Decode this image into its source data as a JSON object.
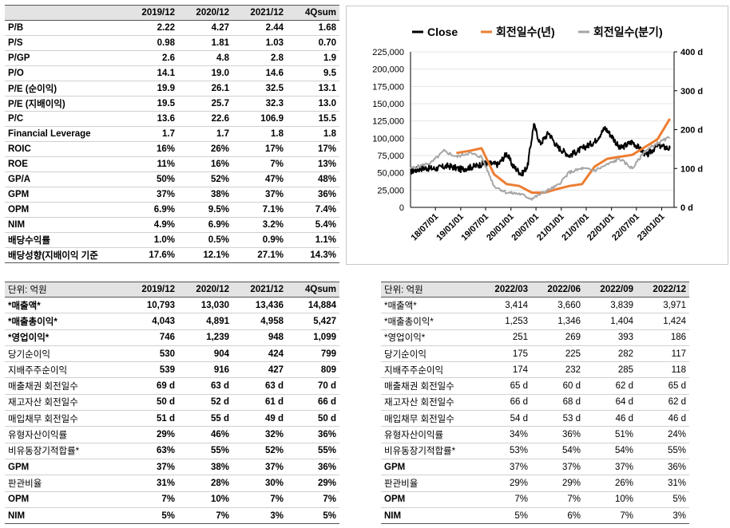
{
  "valuation": {
    "headers": [
      "",
      "2019/12",
      "2020/12",
      "2021/12",
      "4Qsum"
    ],
    "rows": [
      {
        "label": "P/B",
        "values": [
          "2.22",
          "4.27",
          "2.44",
          "1.68"
        ]
      },
      {
        "label": "P/S",
        "values": [
          "0.98",
          "1.81",
          "1.03",
          "0.70"
        ]
      },
      {
        "label": "P/GP",
        "values": [
          "2.6",
          "4.8",
          "2.8",
          "1.9"
        ]
      },
      {
        "label": "P/O",
        "values": [
          "14.1",
          "19.0",
          "14.6",
          "9.5"
        ]
      },
      {
        "label": "P/E (순이익)",
        "values": [
          "19.9",
          "26.1",
          "32.5",
          "13.1"
        ]
      },
      {
        "label": "P/E (지배이익)",
        "values": [
          "19.5",
          "25.7",
          "32.3",
          "13.0"
        ]
      },
      {
        "label": "P/C",
        "values": [
          "13.6",
          "22.6",
          "106.9",
          "15.5"
        ]
      },
      {
        "label": "Financial Leverage",
        "values": [
          "1.7",
          "1.7",
          "1.8",
          "1.8"
        ]
      },
      {
        "label": "ROIC",
        "values": [
          "16%",
          "26%",
          "17%",
          "17%"
        ]
      },
      {
        "label": "ROE",
        "values": [
          "11%",
          "16%",
          "7%",
          "13%"
        ]
      },
      {
        "label": "GP/A",
        "values": [
          "50%",
          "52%",
          "47%",
          "48%"
        ]
      },
      {
        "label": "GPM",
        "values": [
          "37%",
          "38%",
          "37%",
          "36%"
        ]
      },
      {
        "label": "OPM",
        "values": [
          "6.9%",
          "9.5%",
          "7.1%",
          "7.4%"
        ]
      },
      {
        "label": "NIM",
        "values": [
          "4.9%",
          "6.9%",
          "3.2%",
          "5.4%"
        ]
      },
      {
        "label": "배당수익률",
        "values": [
          "1.0%",
          "0.5%",
          "0.9%",
          "1.1%"
        ]
      },
      {
        "label": "배당성향(지배이익 기준",
        "values": [
          "17.6%",
          "12.1%",
          "27.1%",
          "14.3%"
        ]
      }
    ]
  },
  "annual": {
    "headers": [
      "단위: 억원",
      "2019/12",
      "2020/12",
      "2021/12",
      "4Qsum"
    ],
    "rows": [
      {
        "label": "*매출액*",
        "values": [
          "10,793",
          "13,030",
          "13,436",
          "14,884"
        ]
      },
      {
        "label": "*매출총이익*",
        "values": [
          "4,043",
          "4,891",
          "4,958",
          "5,427"
        ]
      },
      {
        "label": "*영업이익*",
        "values": [
          "746",
          "1,239",
          "948",
          "1,099"
        ]
      },
      {
        "label": "당기순이익",
        "values": [
          "530",
          "904",
          "424",
          "799"
        ]
      },
      {
        "label": "지배주주순이익",
        "values": [
          "539",
          "916",
          "427",
          "809"
        ]
      },
      {
        "label": "매출채권 회전일수",
        "values": [
          "69 d",
          "63 d",
          "63 d",
          "70 d"
        ]
      },
      {
        "label": "재고자산 회전일수",
        "values": [
          "50 d",
          "52 d",
          "61 d",
          "66 d"
        ]
      },
      {
        "label": "매입채무 회전일수",
        "values": [
          "51 d",
          "55 d",
          "49 d",
          "50 d"
        ]
      },
      {
        "label": "유형자산이익률",
        "values": [
          "29%",
          "46%",
          "32%",
          "36%"
        ]
      },
      {
        "label": "비유동장기적합률*",
        "values": [
          "63%",
          "55%",
          "52%",
          "55%"
        ]
      },
      {
        "label": "GPM",
        "values": [
          "37%",
          "38%",
          "37%",
          "36%"
        ]
      },
      {
        "label": "판관비율",
        "values": [
          "31%",
          "28%",
          "30%",
          "29%"
        ]
      },
      {
        "label": "OPM",
        "values": [
          "7%",
          "10%",
          "7%",
          "7%"
        ]
      },
      {
        "label": "NIM",
        "values": [
          "5%",
          "7%",
          "3%",
          "5%"
        ]
      }
    ]
  },
  "quarterly": {
    "headers": [
      "단위: 억원",
      "2022/03",
      "2022/06",
      "2022/09",
      "2022/12"
    ],
    "rows": [
      {
        "label": "*매출액*",
        "values": [
          "3,414",
          "3,660",
          "3,839",
          "3,971"
        ]
      },
      {
        "label": "*매출총이익*",
        "values": [
          "1,253",
          "1,346",
          "1,404",
          "1,424"
        ]
      },
      {
        "label": "*영업이익*",
        "values": [
          "251",
          "269",
          "393",
          "186"
        ]
      },
      {
        "label": "당기순이익",
        "values": [
          "175",
          "225",
          "282",
          "117"
        ]
      },
      {
        "label": "지배주주순이익",
        "values": [
          "174",
          "232",
          "285",
          "118"
        ]
      },
      {
        "label": "매출채권 회전일수",
        "values": [
          "65 d",
          "60 d",
          "62 d",
          "65 d"
        ]
      },
      {
        "label": "재고자산 회전일수",
        "values": [
          "66 d",
          "68 d",
          "64 d",
          "62 d"
        ]
      },
      {
        "label": "매입채무 회전일수",
        "values": [
          "54 d",
          "53 d",
          "46 d",
          "46 d"
        ]
      },
      {
        "label": "유형자산이익률",
        "values": [
          "34%",
          "36%",
          "51%",
          "24%"
        ]
      },
      {
        "label": "비유동장기적합률*",
        "values": [
          "53%",
          "54%",
          "54%",
          "55%"
        ]
      },
      {
        "label": "GPM",
        "values": [
          "37%",
          "37%",
          "37%",
          "36%"
        ]
      },
      {
        "label": "판관비율",
        "values": [
          "29%",
          "29%",
          "26%",
          "31%"
        ]
      },
      {
        "label": "OPM",
        "values": [
          "7%",
          "7%",
          "10%",
          "5%"
        ]
      },
      {
        "label": "NIM",
        "values": [
          "5%",
          "6%",
          "7%",
          "3%"
        ]
      }
    ]
  },
  "chart_data": {
    "type": "line",
    "legend_position": "top",
    "grid": true,
    "x_tick_labels": [
      "18/07/01",
      "19/01/01",
      "19/07/01",
      "20/01/01",
      "20/07/01",
      "21/01/01",
      "21/07/01",
      "22/01/01",
      "22/07/01",
      "23/01/01"
    ],
    "y_left": {
      "ticks": [
        "0",
        "25,000",
        "50,000",
        "75,000",
        "100,000",
        "125,000",
        "150,000",
        "175,000",
        "200,000",
        "225,000"
      ],
      "ylim": [
        0,
        225000
      ]
    },
    "y_right": {
      "ticks": [
        "0 d",
        "100 d",
        "200 d",
        "300 d",
        "400 d"
      ],
      "ylim": [
        0,
        400
      ]
    },
    "x_range": [
      "2018-01-01",
      "2023-04-01"
    ],
    "series": [
      {
        "name": "Close",
        "axis": "left",
        "color": "#000000",
        "points": [
          [
            "2018-01-01",
            52000
          ],
          [
            "2018-04-01",
            57000
          ],
          [
            "2018-07-01",
            56000
          ],
          [
            "2018-10-01",
            60000
          ],
          [
            "2019-01-01",
            55000
          ],
          [
            "2019-04-01",
            59000
          ],
          [
            "2019-07-01",
            64000
          ],
          [
            "2019-10-01",
            62000
          ],
          [
            "2019-12-01",
            78000
          ],
          [
            "2020-01-15",
            60000
          ],
          [
            "2020-03-20",
            48000
          ],
          [
            "2020-05-01",
            60000
          ],
          [
            "2020-06-15",
            120000
          ],
          [
            "2020-08-01",
            92000
          ],
          [
            "2020-10-01",
            108000
          ],
          [
            "2020-12-01",
            88000
          ],
          [
            "2021-03-01",
            75000
          ],
          [
            "2021-06-01",
            85000
          ],
          [
            "2021-09-01",
            95000
          ],
          [
            "2021-11-15",
            115000
          ],
          [
            "2022-01-15",
            100000
          ],
          [
            "2022-03-01",
            85000
          ],
          [
            "2022-06-01",
            95000
          ],
          [
            "2022-09-15",
            75000
          ],
          [
            "2022-12-01",
            90000
          ],
          [
            "2023-03-01",
            85000
          ]
        ]
      },
      {
        "name": "회전일수(년)",
        "axis": "right",
        "color": "#ed7d31",
        "points": [
          [
            "2018-12-01",
            140
          ],
          [
            "2019-03-01",
            145
          ],
          [
            "2019-06-01",
            152
          ],
          [
            "2019-09-01",
            85
          ],
          [
            "2019-12-01",
            60
          ],
          [
            "2020-03-01",
            55
          ],
          [
            "2020-06-01",
            38
          ],
          [
            "2020-09-01",
            38
          ],
          [
            "2020-12-01",
            47
          ],
          [
            "2021-03-01",
            55
          ],
          [
            "2021-06-01",
            60
          ],
          [
            "2021-09-01",
            105
          ],
          [
            "2021-12-01",
            125
          ],
          [
            "2022-03-01",
            130
          ],
          [
            "2022-06-01",
            135
          ],
          [
            "2022-09-01",
            155
          ],
          [
            "2022-12-01",
            175
          ],
          [
            "2023-03-01",
            228
          ]
        ]
      },
      {
        "name": "회전일수(분기)",
        "axis": "right",
        "color": "#a6a6a6",
        "points": [
          [
            "2018-01-01",
            100
          ],
          [
            "2018-06-01",
            115
          ],
          [
            "2018-09-01",
            145
          ],
          [
            "2018-12-01",
            130
          ],
          [
            "2019-03-01",
            140
          ],
          [
            "2019-06-01",
            130
          ],
          [
            "2019-09-01",
            55
          ],
          [
            "2019-12-01",
            38
          ],
          [
            "2020-03-01",
            35
          ],
          [
            "2020-06-01",
            22
          ],
          [
            "2020-09-01",
            40
          ],
          [
            "2020-12-01",
            55
          ],
          [
            "2021-03-01",
            90
          ],
          [
            "2021-06-01",
            100
          ],
          [
            "2021-09-01",
            95
          ],
          [
            "2021-12-01",
            110
          ],
          [
            "2022-03-01",
            125
          ],
          [
            "2022-06-01",
            100
          ],
          [
            "2022-09-01",
            145
          ],
          [
            "2022-12-01",
            165
          ],
          [
            "2023-03-01",
            180
          ]
        ]
      }
    ]
  }
}
